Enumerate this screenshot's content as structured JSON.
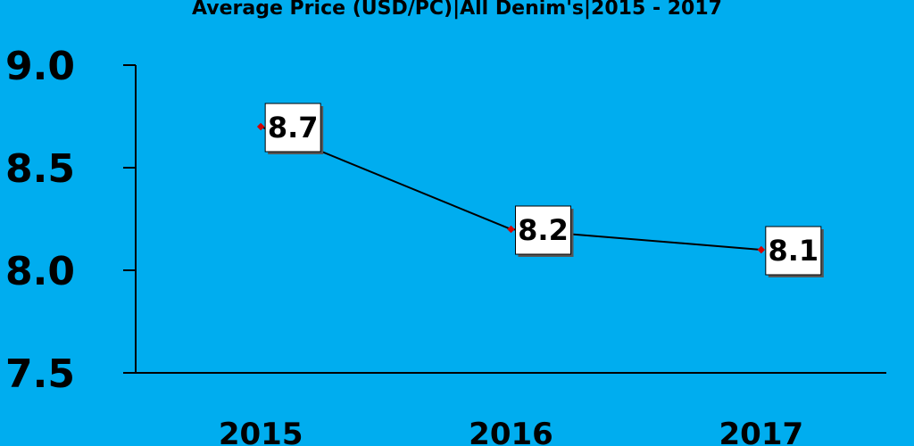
{
  "chart_data": {
    "type": "line",
    "title": "Average Price (USD/PC)|All Denim's|2015 - 2017",
    "xlabel": "",
    "ylabel": "",
    "categories": [
      "2015",
      "2016",
      "2017"
    ],
    "values": [
      8.7,
      8.2,
      8.1
    ],
    "data_labels": [
      "8.7",
      "8.2",
      "8.1"
    ],
    "ylim": [
      7.5,
      9.0
    ],
    "yticks": [
      7.5,
      8.0,
      8.5,
      9.0
    ],
    "ytick_labels": [
      "7.5",
      "8.0",
      "8.5",
      "9.0"
    ],
    "grid": false,
    "legend": "none",
    "colors": {
      "background": "#00adef",
      "line": "#000000",
      "marker": "#d40000",
      "label_box": "#ffffff"
    }
  }
}
